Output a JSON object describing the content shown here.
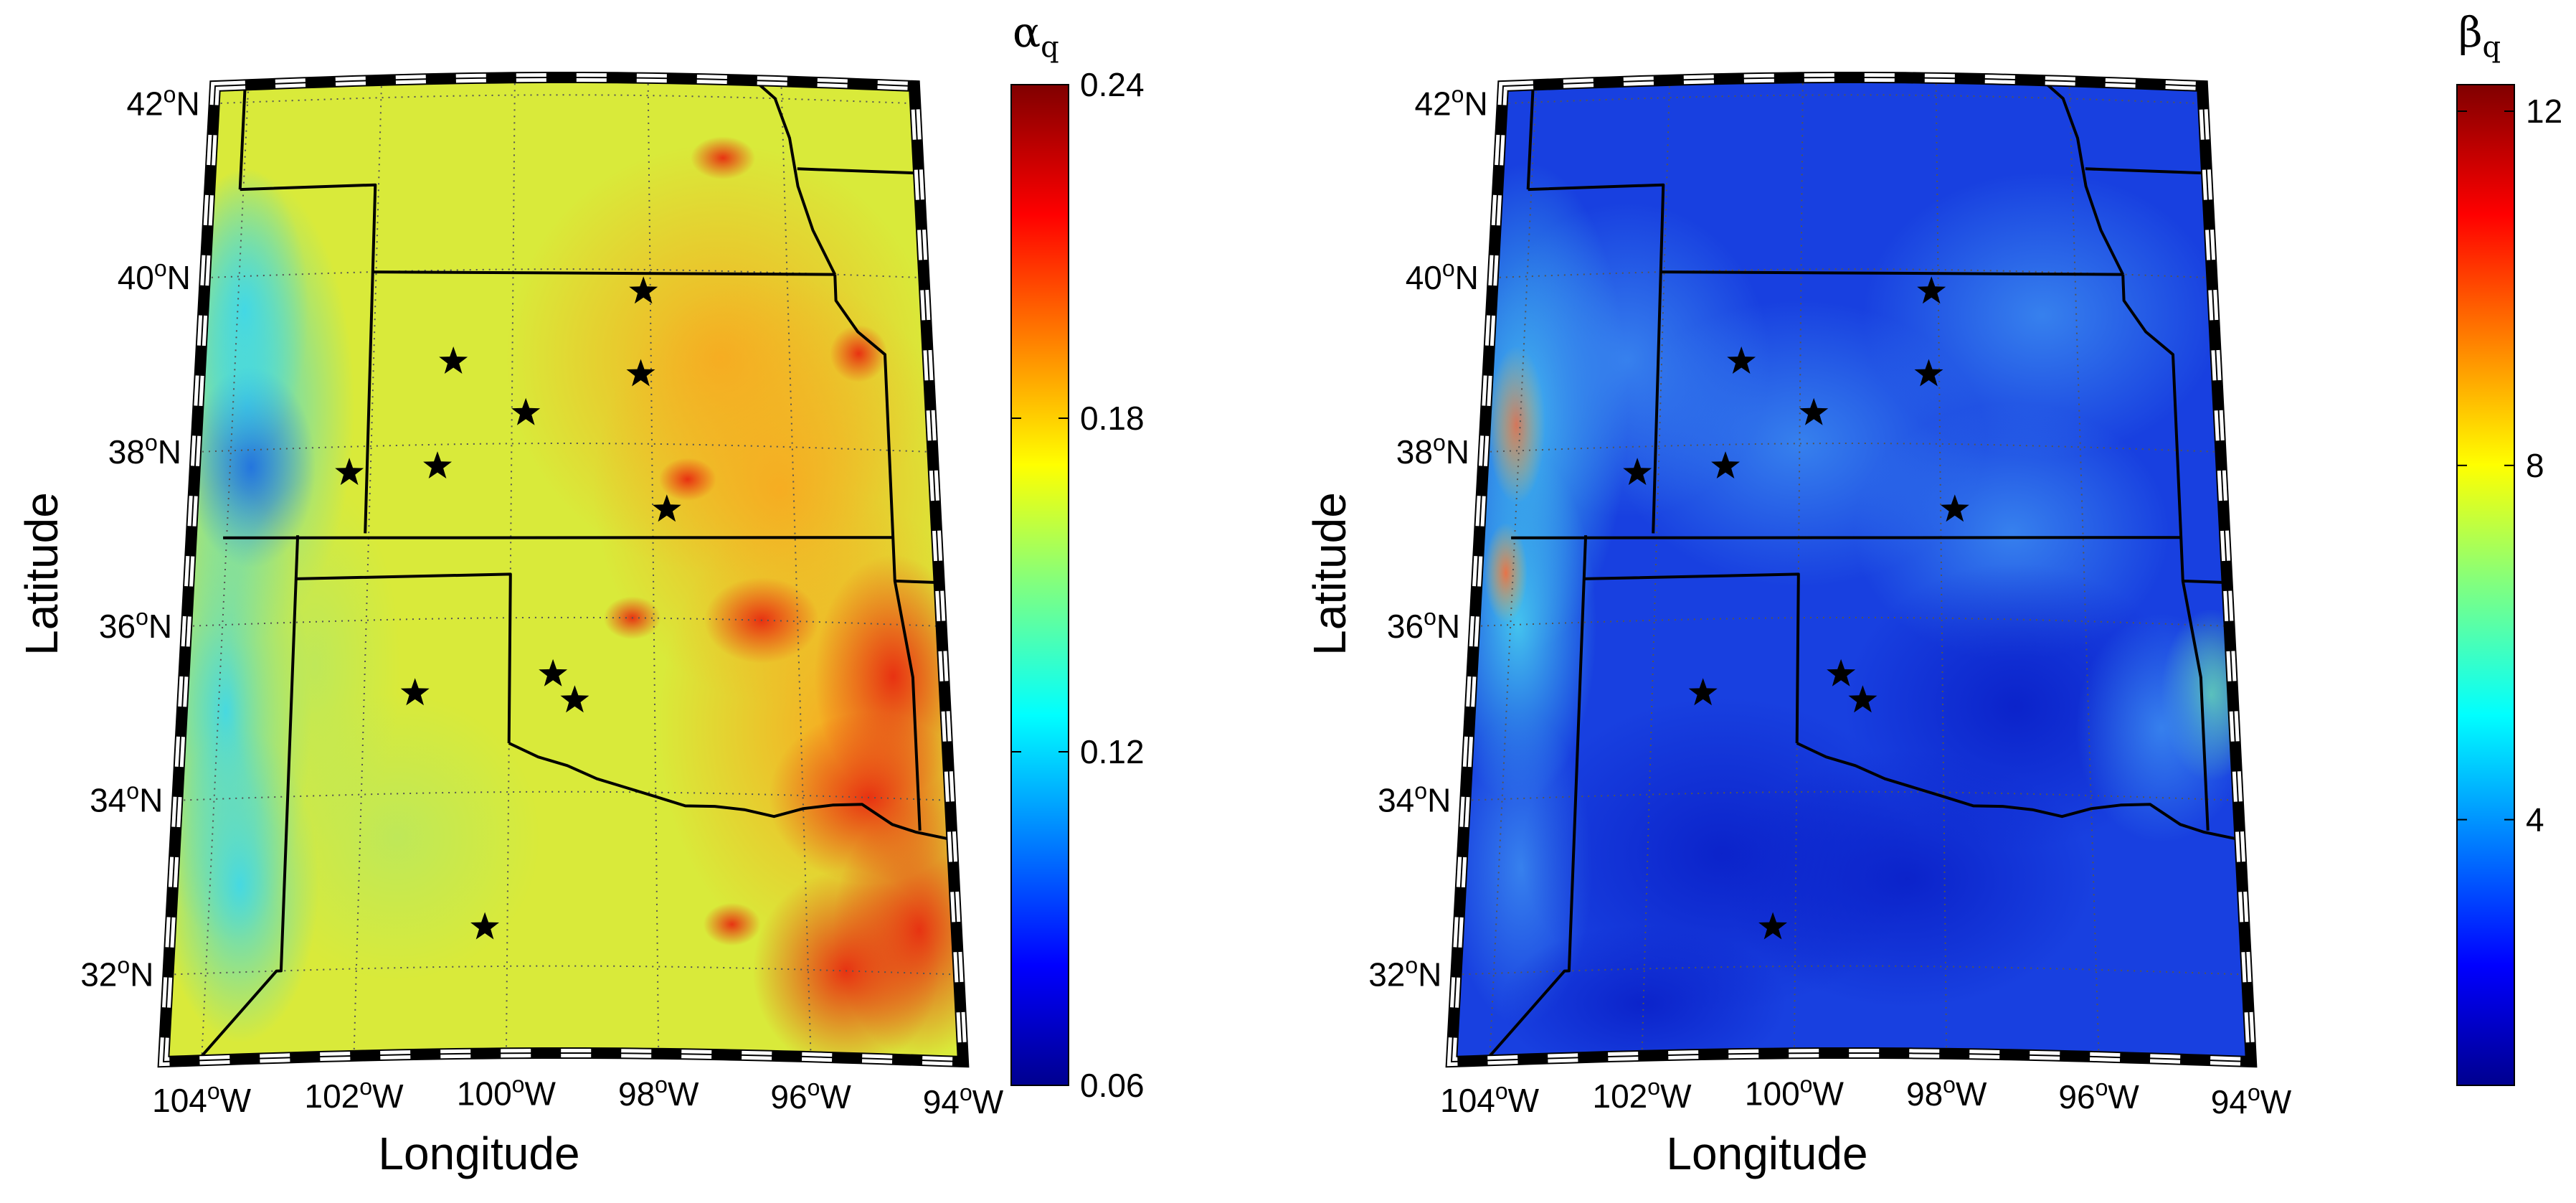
{
  "maps": [
    {
      "id": "alpha",
      "colorbar": {
        "symbol": "α",
        "subscript": "q",
        "range": [
          0.06,
          0.24
        ],
        "ticks": [
          "0.24",
          "0.18",
          "0.12",
          "0.06"
        ]
      }
    },
    {
      "id": "beta",
      "colorbar": {
        "symbol": "β",
        "subscript": "q",
        "range": [
          1,
          12.3
        ],
        "ticks": [
          "12",
          "8",
          "4"
        ]
      }
    }
  ],
  "axes": {
    "xlabel": "Longitude",
    "ylabel": "Latitude",
    "lat_ticks": [
      "42",
      "40",
      "38",
      "36",
      "34",
      "32"
    ],
    "lat_suffix": "N",
    "lon_ticks": [
      "104",
      "102",
      "100",
      "98",
      "96",
      "94"
    ],
    "lon_suffix": "W",
    "degree_mark": "o"
  },
  "stations": [
    {
      "lon": -98.1,
      "lat": 39.75
    },
    {
      "lon": -100.85,
      "lat": 38.95
    },
    {
      "lon": -98.15,
      "lat": 38.8
    },
    {
      "lon": -99.8,
      "lat": 38.35
    },
    {
      "lon": -102.3,
      "lat": 37.7
    },
    {
      "lon": -101.05,
      "lat": 37.75
    },
    {
      "lon": -97.8,
      "lat": 37.25
    },
    {
      "lon": -99.4,
      "lat": 35.35
    },
    {
      "lon": -101.3,
      "lat": 35.15
    },
    {
      "lon": -99.1,
      "lat": 35.05
    },
    {
      "lon": -100.3,
      "lat": 32.45
    }
  ],
  "colors": {
    "alpha_base": "#d9ea3a",
    "beta_base": "#1840e0",
    "border": "#000000"
  }
}
